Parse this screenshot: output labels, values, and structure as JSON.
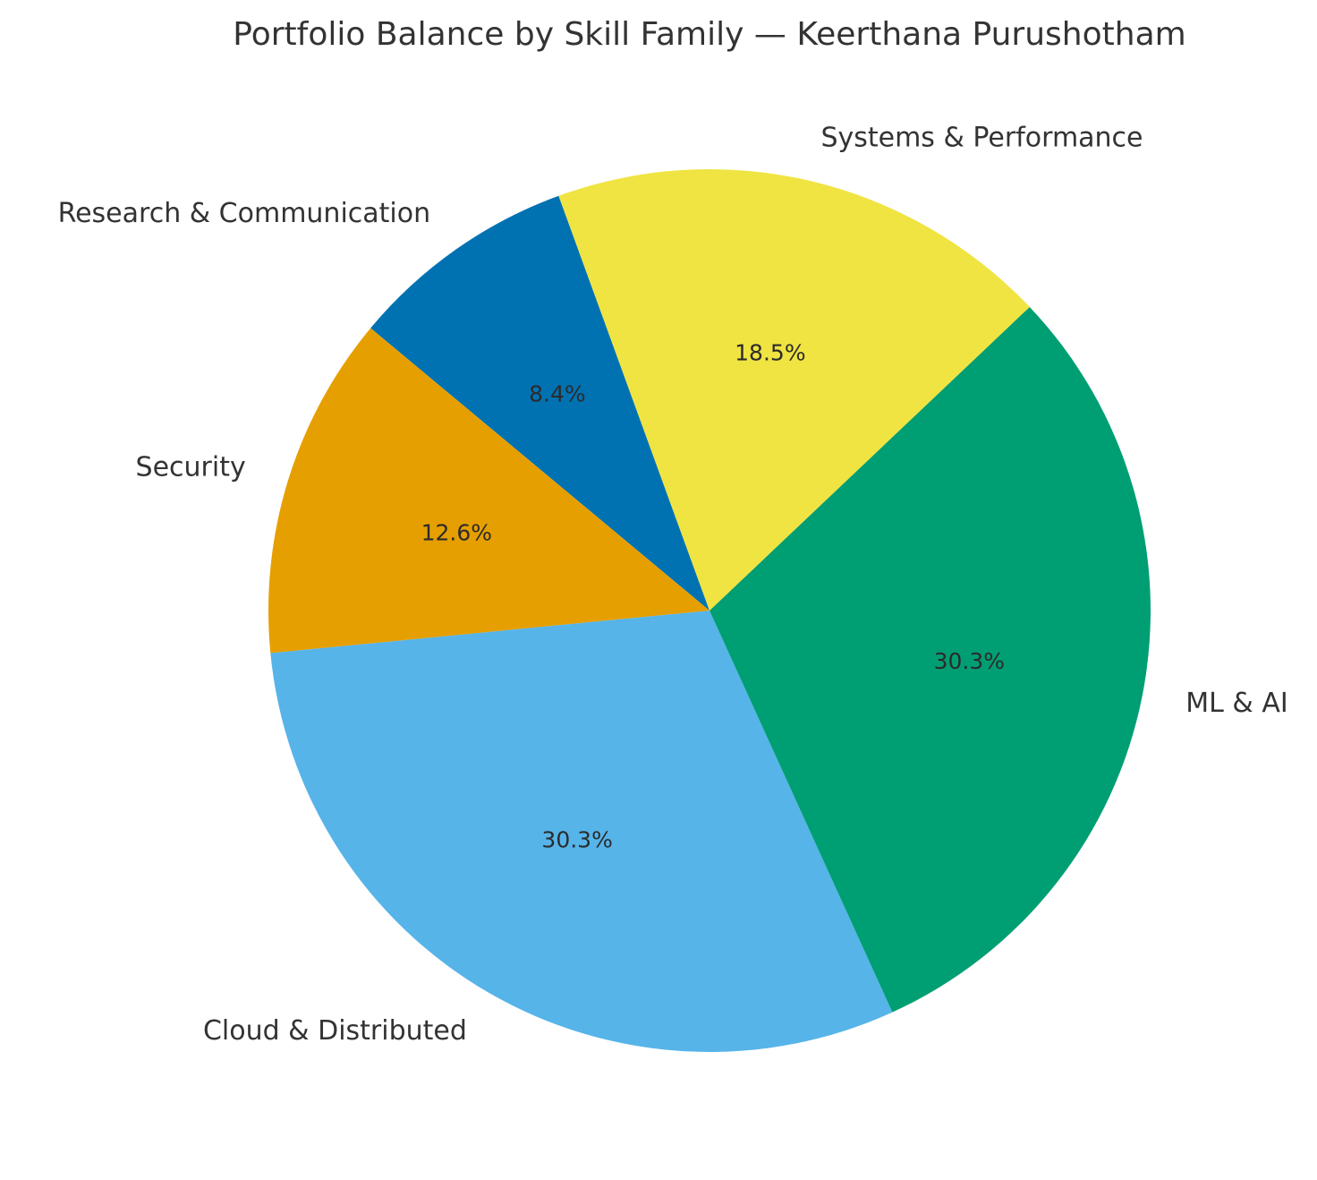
{
  "chart_data": {
    "type": "pie",
    "title": "Portfolio Balance by Skill Family — Keerthana Purushotham",
    "start_angle_deg": 110,
    "direction": "counterclockwise",
    "slices": [
      {
        "label": "Research & Communication",
        "value": 8.4,
        "pct_label": "8.4%",
        "color": "#0072B2"
      },
      {
        "label": "Security",
        "value": 12.6,
        "pct_label": "12.6%",
        "color": "#E69F00"
      },
      {
        "label": "Cloud & Distributed",
        "value": 30.3,
        "pct_label": "30.3%",
        "color": "#56B4E9"
      },
      {
        "label": "ML & AI",
        "value": 30.3,
        "pct_label": "30.3%",
        "color": "#009E73"
      },
      {
        "label": "Systems & Performance",
        "value": 18.5,
        "pct_label": "18.5%",
        "color": "#F0E442"
      }
    ]
  }
}
